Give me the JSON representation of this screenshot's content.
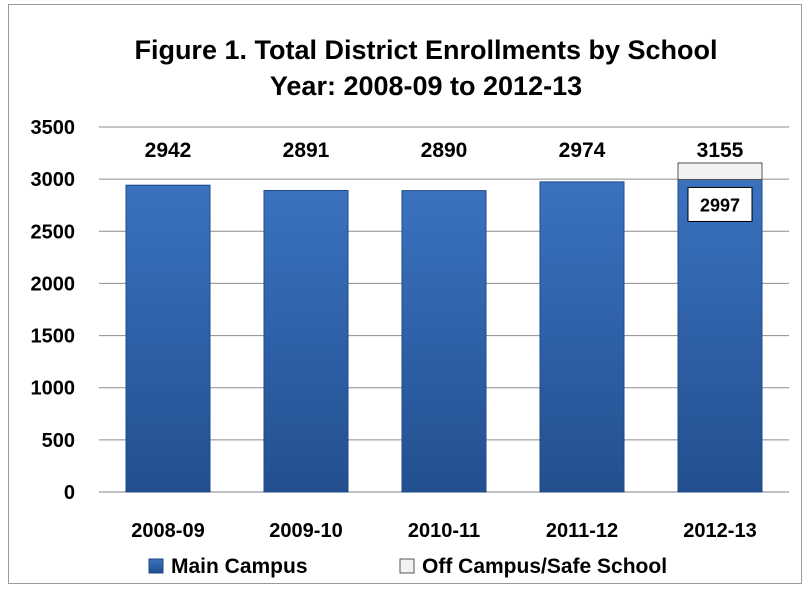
{
  "chart_data": {
    "type": "bar",
    "stacked": true,
    "title": "Figure 1. Total District Enrollments by School Year: 2008-09 to 2012-13",
    "title_lines": [
      "Figure 1. Total District Enrollments by School",
      "Year: 2008-09 to 2012-13"
    ],
    "categories": [
      "2008-09",
      "2009-10",
      "2010-11",
      "2011-12",
      "2012-13"
    ],
    "series": [
      {
        "name": "Main Campus",
        "values": [
          2942,
          2891,
          2890,
          2974,
          2997
        ],
        "color": "#2e64ad"
      },
      {
        "name": "Off Campus/Safe School",
        "values": [
          0,
          0,
          0,
          0,
          158
        ],
        "color": "#f2f2f2"
      }
    ],
    "total_labels": [
      "2942",
      "2891",
      "2890",
      "2974",
      "3155"
    ],
    "inner_labels": [
      {
        "category": "2012-13",
        "text": "2997"
      }
    ],
    "xlabel": "",
    "ylabel": "",
    "ylim": [
      0,
      3500
    ],
    "yticks": [
      0,
      500,
      1000,
      1500,
      2000,
      2500,
      3000,
      3500
    ],
    "grid": true,
    "legend_position": "bottom"
  }
}
